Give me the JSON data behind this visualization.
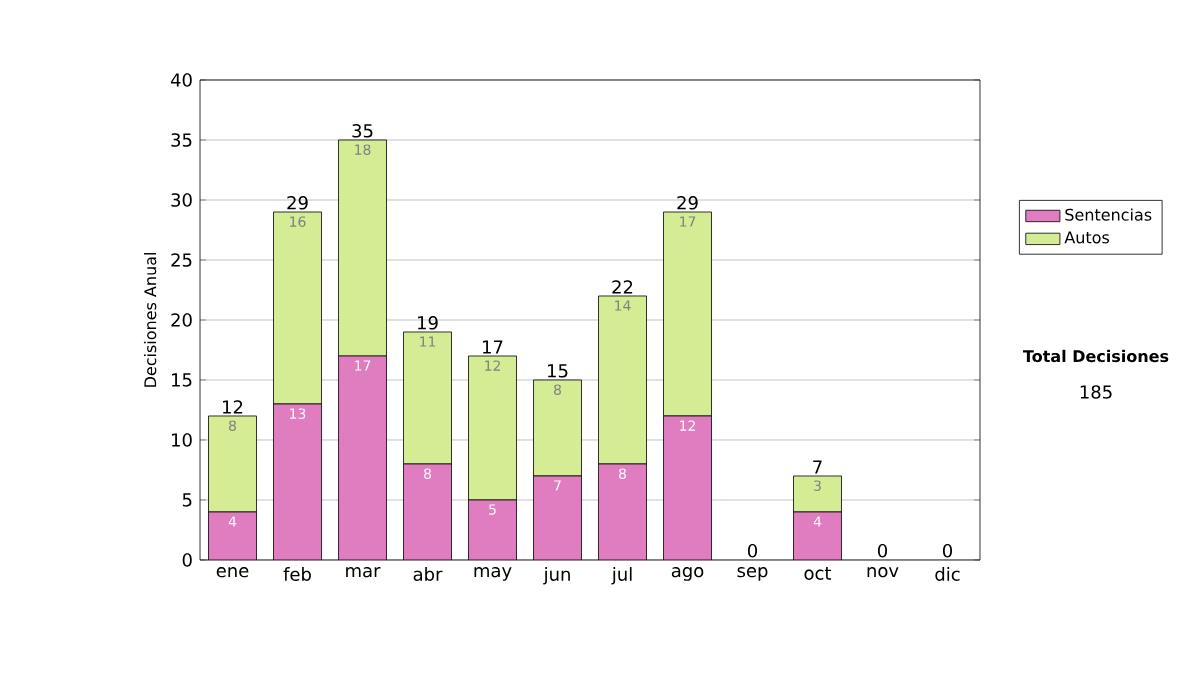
{
  "chart_data": {
    "type": "bar",
    "stacked": true,
    "ylabel": "Decisiones Anual",
    "categories": [
      "ene",
      "feb",
      "mar",
      "abr",
      "may",
      "jun",
      "jul",
      "ago",
      "sep",
      "oct",
      "nov",
      "dic"
    ],
    "series": [
      {
        "name": "Sentencias",
        "color": "#e07cc0",
        "values": [
          4,
          13,
          17,
          8,
          5,
          7,
          8,
          12,
          0,
          4,
          0,
          0
        ],
        "value_labels": [
          "4",
          "13",
          "17",
          "8",
          "5",
          "7",
          "8",
          "12",
          null,
          "4",
          null,
          null
        ]
      },
      {
        "name": "Autos",
        "color": "#d4ec94",
        "values": [
          8,
          16,
          18,
          11,
          12,
          8,
          14,
          17,
          0,
          3,
          0,
          0
        ],
        "value_labels": [
          "8",
          "16",
          "18",
          "11",
          "12",
          "8",
          "14",
          "17",
          null,
          "3",
          null,
          null
        ]
      }
    ],
    "totals": [
      "12",
      "29",
      "35",
      "19",
      "17",
      "15",
      "22",
      "29",
      "0",
      "7",
      "0",
      "0"
    ],
    "ylim": [
      0,
      40
    ],
    "yticks": [
      0,
      5,
      10,
      15,
      20,
      25,
      30,
      35,
      40
    ],
    "grid": "y",
    "legend": "right",
    "annotations": [
      "Total Decisiones",
      "185"
    ]
  }
}
